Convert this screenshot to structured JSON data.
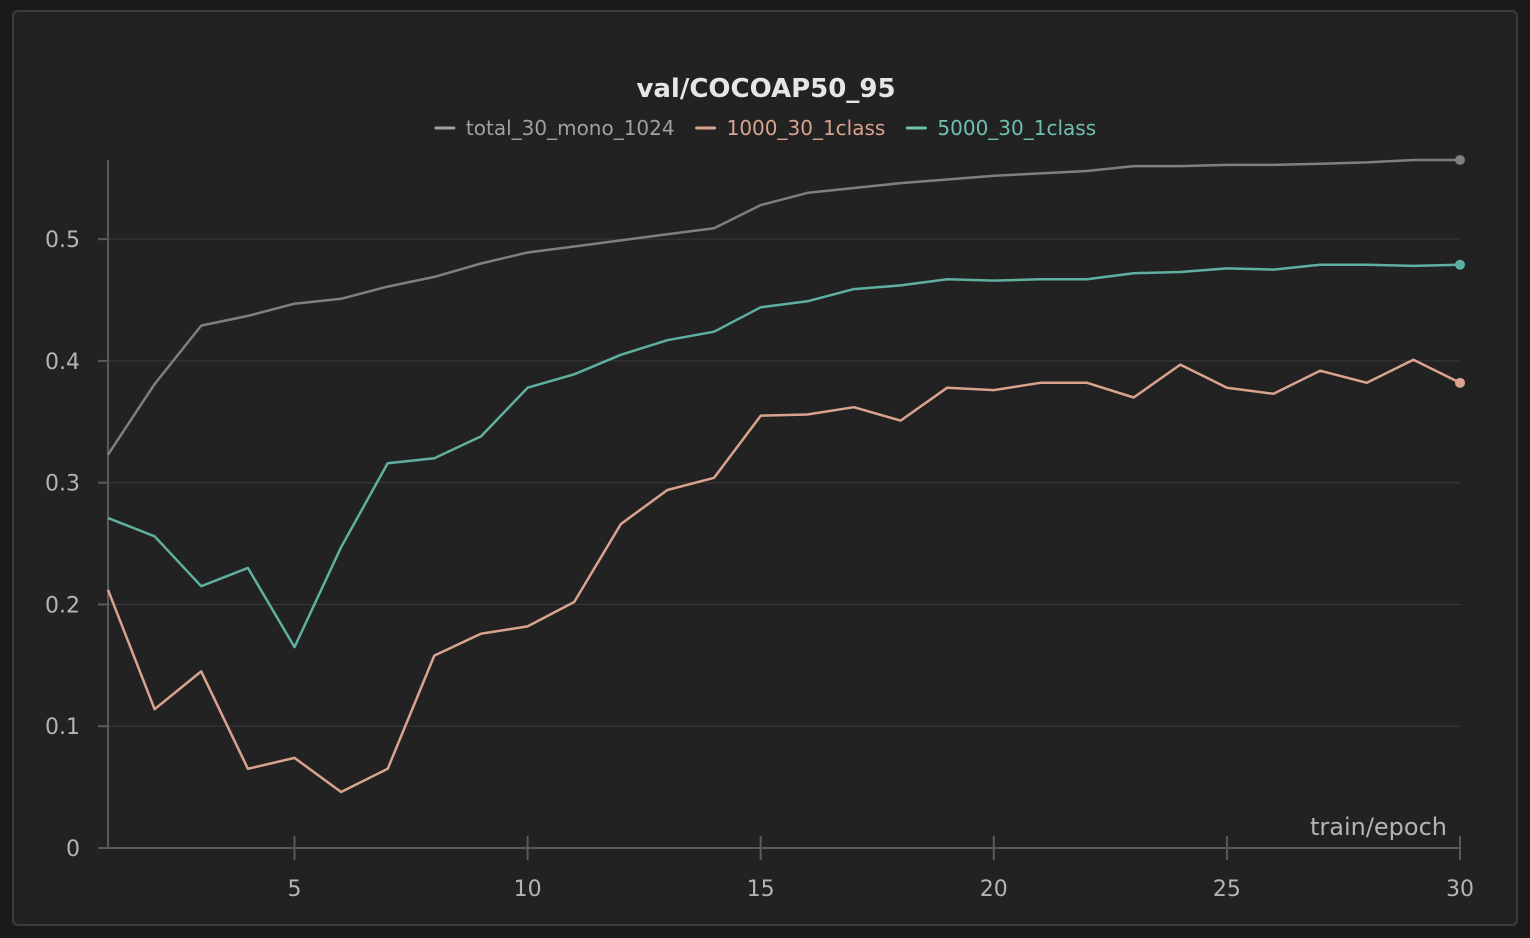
{
  "chart_data": {
    "type": "line",
    "title": "val/COCOAP50_95",
    "xlabel": "train/epoch",
    "ylabel": "",
    "xlim": [
      1,
      30
    ],
    "ylim": [
      0,
      0.565
    ],
    "x_ticks": [
      5,
      10,
      15,
      20,
      25,
      30
    ],
    "y_ticks": [
      0,
      0.1,
      0.2,
      0.3,
      0.4,
      0.5
    ],
    "y_tick_labels": [
      "0",
      "0.1",
      "0.2",
      "0.3",
      "0.4",
      "0.5"
    ],
    "grid": true,
    "legend_position": "top",
    "x": [
      1,
      2,
      3,
      4,
      5,
      6,
      7,
      8,
      9,
      10,
      11,
      12,
      13,
      14,
      15,
      16,
      17,
      18,
      19,
      20,
      21,
      22,
      23,
      24,
      25,
      26,
      27,
      28,
      29,
      30
    ],
    "series": [
      {
        "name": "total_30_mono_1024",
        "color": "#7f7f7f",
        "legend_color": "#a0a0a0",
        "values": [
          0.323,
          0.381,
          0.429,
          0.437,
          0.447,
          0.451,
          0.461,
          0.469,
          0.48,
          0.489,
          0.494,
          0.499,
          0.504,
          0.509,
          0.528,
          0.538,
          0.542,
          0.546,
          0.549,
          0.552,
          0.554,
          0.556,
          0.56,
          0.56,
          0.561,
          0.561,
          0.562,
          0.563,
          0.565,
          0.565
        ]
      },
      {
        "name": "1000_30_1class",
        "color": "#d9a38e",
        "legend_color": "#d9a38e",
        "values": [
          0.212,
          0.114,
          0.145,
          0.065,
          0.074,
          0.046,
          0.065,
          0.158,
          0.176,
          0.182,
          0.202,
          0.266,
          0.294,
          0.304,
          0.355,
          0.356,
          0.362,
          0.351,
          0.378,
          0.376,
          0.382,
          0.382,
          0.37,
          0.397,
          0.378,
          0.373,
          0.392,
          0.382,
          0.401,
          0.382
        ]
      },
      {
        "name": "5000_30_1class",
        "color": "#5fb0a0",
        "legend_color": "#6fc0ae",
        "values": [
          0.271,
          0.256,
          0.215,
          0.23,
          0.165,
          0.247,
          0.316,
          0.32,
          0.338,
          0.378,
          0.389,
          0.405,
          0.417,
          0.424,
          0.444,
          0.449,
          0.459,
          0.462,
          0.467,
          0.466,
          0.467,
          0.467,
          0.472,
          0.473,
          0.476,
          0.475,
          0.479,
          0.479,
          0.478,
          0.479
        ]
      }
    ]
  }
}
